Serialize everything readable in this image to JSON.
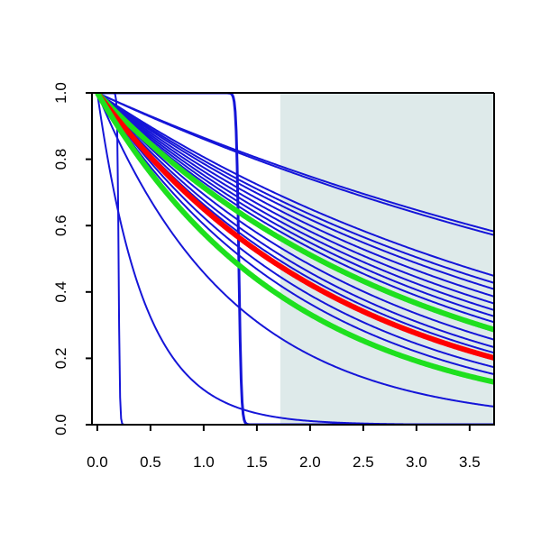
{
  "chart_data": {
    "type": "line",
    "title": "",
    "xlabel": "",
    "ylabel": "",
    "xlim": [
      -0.05,
      3.73
    ],
    "ylim": [
      0.0,
      1.0
    ],
    "grid": false,
    "legend": "none",
    "x_ticks": [
      "0.0",
      "0.5",
      "1.0",
      "1.5",
      "2.0",
      "2.5",
      "3.0",
      "3.5"
    ],
    "y_ticks": [
      "0.0",
      "0.2",
      "0.4",
      "0.6",
      "0.8",
      "1.0"
    ],
    "shaded_region": {
      "x": [
        1.72,
        3.73
      ],
      "color": "#deeaea"
    },
    "colors": {
      "blue": "#1515d8",
      "red": "#ff0000",
      "green": "#1ee01e"
    },
    "series": [
      {
        "type": "exp",
        "k": 0.145,
        "color": "blue",
        "width": 2
      },
      {
        "type": "exp",
        "k": 0.15,
        "color": "blue",
        "width": 2
      },
      {
        "type": "exp",
        "k": 0.215,
        "color": "blue",
        "width": 2
      },
      {
        "type": "exp",
        "k": 0.228,
        "color": "blue",
        "width": 2
      },
      {
        "type": "exp",
        "k": 0.24,
        "color": "blue",
        "width": 2
      },
      {
        "type": "exp",
        "k": 0.255,
        "color": "blue",
        "width": 2
      },
      {
        "type": "exp",
        "k": 0.27,
        "color": "blue",
        "width": 2
      },
      {
        "type": "exp",
        "k": 0.285,
        "color": "blue",
        "width": 2
      },
      {
        "type": "exp",
        "k": 0.3,
        "color": "blue",
        "width": 2
      },
      {
        "type": "exp",
        "k": 0.315,
        "color": "blue",
        "width": 2
      },
      {
        "type": "exp",
        "k": 0.34,
        "color": "blue",
        "width": 2
      },
      {
        "type": "exp",
        "k": 0.365,
        "color": "blue",
        "width": 2
      },
      {
        "type": "exp",
        "k": 0.39,
        "color": "blue",
        "width": 2
      },
      {
        "type": "exp",
        "k": 0.41,
        "color": "blue",
        "width": 2
      },
      {
        "type": "exp",
        "k": 0.435,
        "color": "blue",
        "width": 2
      },
      {
        "type": "exp",
        "k": 0.47,
        "color": "blue",
        "width": 2
      },
      {
        "type": "exp",
        "k": 0.505,
        "color": "blue",
        "width": 2
      },
      {
        "type": "exp",
        "k": 0.78,
        "color": "blue",
        "width": 2
      },
      {
        "type": "exp",
        "k": 2.25,
        "color": "blue",
        "width": 2
      },
      {
        "type": "step",
        "x0": 0.2,
        "w": 0.006,
        "color": "blue",
        "width": 2
      },
      {
        "type": "step",
        "x0": 1.33,
        "w": 0.012,
        "color": "blue",
        "width": 3
      },
      {
        "type": "exp",
        "k": 0.335,
        "color": "green",
        "width": 6
      },
      {
        "type": "exp",
        "k": 0.43,
        "color": "red",
        "width": 6
      },
      {
        "type": "exp",
        "k": 0.55,
        "color": "green",
        "width": 6
      }
    ]
  }
}
